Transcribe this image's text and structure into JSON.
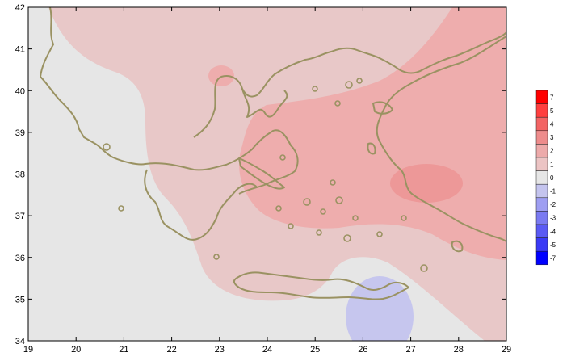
{
  "map": {
    "x_ticks": [
      "19",
      "20",
      "21",
      "22",
      "23",
      "24",
      "25",
      "26",
      "27",
      "28",
      "29"
    ],
    "y_ticks": [
      "34",
      "35",
      "36",
      "37",
      "38",
      "39",
      "40",
      "41",
      "42"
    ],
    "lon_range": [
      19,
      29
    ],
    "lat_range": [
      34,
      42
    ],
    "grid": false
  },
  "legend": {
    "placement": "right",
    "items": [
      {
        "label": "7",
        "color": "#ff0000"
      },
      {
        "label": "5",
        "color": "#ff3f3f"
      },
      {
        "label": "4",
        "color": "#f36464"
      },
      {
        "label": "3",
        "color": "#ee8c8c"
      },
      {
        "label": "2",
        "color": "#edaaaa"
      },
      {
        "label": "1",
        "color": "#ecc4c4"
      },
      {
        "label": "0",
        "color": "#e6e6e6"
      },
      {
        "label": "-1",
        "color": "#c4c4ee"
      },
      {
        "label": "-2",
        "color": "#9e9ef2"
      },
      {
        "label": "-3",
        "color": "#7a7af2"
      },
      {
        "label": "-4",
        "color": "#5a5af4"
      },
      {
        "label": "-5",
        "color": "#3a3af6"
      },
      {
        "label": "-7",
        "color": "#0000ff"
      }
    ]
  },
  "colors": {
    "background_field": "#e6e6e6",
    "field_level_1": "#e8c8c8",
    "field_level_2": "#eeadad",
    "field_level_3": "#ed9898",
    "field_negative": "#c6c6ee",
    "coastline": "#9a9262"
  }
}
